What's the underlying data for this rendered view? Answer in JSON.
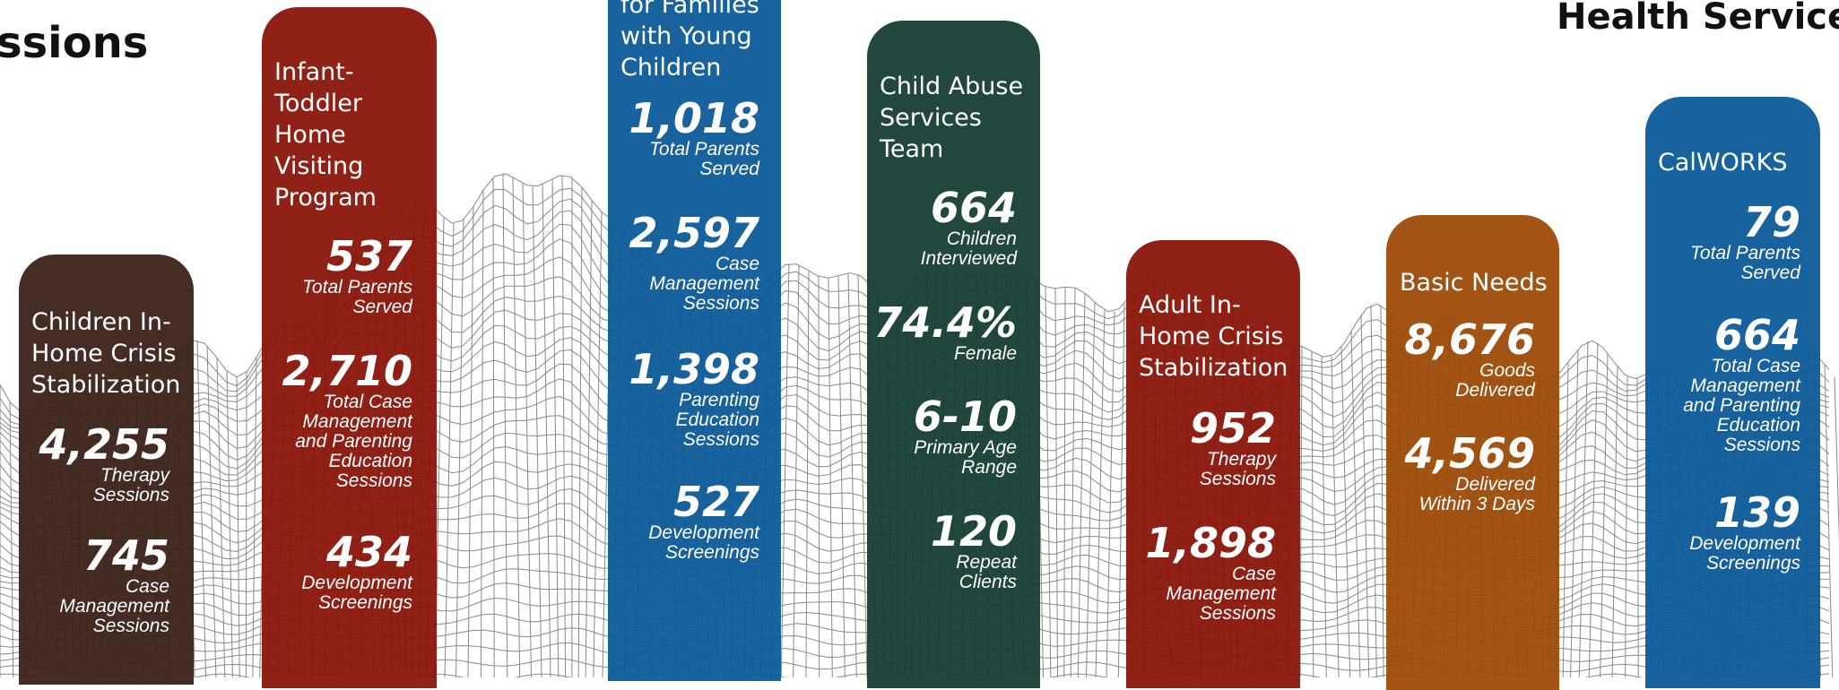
{
  "headers": {
    "left": "ssions",
    "right": "Health Services"
  },
  "columns": [
    {
      "title": "Children In-\nHome Crisis\nStabilization",
      "color": "#3a2018",
      "stats": [
        {
          "value": "4,255",
          "label": "Therapy\nSessions"
        },
        {
          "value": "745",
          "label": "Case\nManagement\nSessions"
        }
      ]
    },
    {
      "title": "Infant-\nToddler\nHome\nVisiting\nProgram",
      "color": "#8a1408",
      "stats": [
        {
          "value": "537",
          "label": "Total Parents\nServed"
        },
        {
          "value": "2,710",
          "label": "Total Case\nManagement\nand Parenting\nEducation\nSessions"
        },
        {
          "value": "434",
          "label": "Development\nScreenings"
        }
      ]
    },
    {
      "title": "for Families\nwith Young\nChildren",
      "color": "#0a5a98",
      "stats": [
        {
          "value": "1,018",
          "label": "Total Parents\nServed"
        },
        {
          "value": "2,597",
          "label": "Case\nManagement\nSessions"
        },
        {
          "value": "1,398",
          "label": "Parenting\nEducation\nSessions"
        },
        {
          "value": "527",
          "label": "Development\nScreenings"
        }
      ]
    },
    {
      "title": "Child Abuse\nServices\nTeam",
      "color": "#143c32",
      "stats": [
        {
          "value": "664",
          "label": "Children\nInterviewed"
        },
        {
          "value": "74.4%",
          "label": "Female"
        },
        {
          "value": "6-10",
          "label": "Primary Age\nRange"
        },
        {
          "value": "120",
          "label": "Repeat\nClients"
        }
      ]
    },
    {
      "title": "Adult In-\nHome Crisis\nStabilization",
      "color": "#8a1408",
      "stats": [
        {
          "value": "952",
          "label": "Therapy\nSessions"
        },
        {
          "value": "1,898",
          "label": "Case\nManagement\nSessions"
        }
      ]
    },
    {
      "title": "Basic Needs",
      "color": "#9c4a06",
      "stats": [
        {
          "value": "8,676",
          "label": "Goods\nDelivered"
        },
        {
          "value": "4,569",
          "label": "Delivered\nWithin 3 Days"
        }
      ]
    },
    {
      "title": "CalWORKS",
      "color": "#0a5a98",
      "stats": [
        {
          "value": "79",
          "label": "Total Parents\nServed"
        },
        {
          "value": "664",
          "label": "Total Case\nManagement\nand Parenting\nEducation\nSessions"
        },
        {
          "value": "139",
          "label": "Development\nScreenings"
        }
      ]
    }
  ]
}
